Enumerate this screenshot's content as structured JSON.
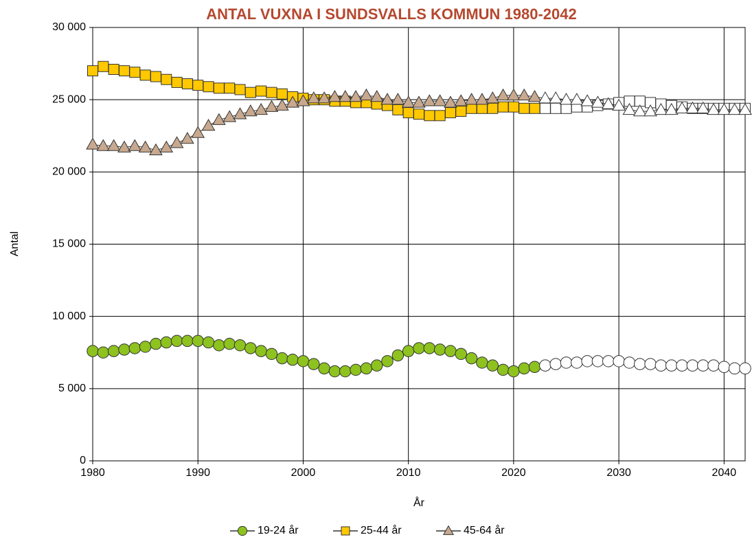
{
  "chart_data": {
    "type": "line",
    "title": "ANTAL VUXNA I SUNDSVALLS KOMMUN 1980-2042",
    "title_color": "#b5482e",
    "xlabel": "År",
    "ylabel": "Antal",
    "x": [
      1980,
      1981,
      1982,
      1983,
      1984,
      1985,
      1986,
      1987,
      1988,
      1989,
      1990,
      1991,
      1992,
      1993,
      1994,
      1995,
      1996,
      1997,
      1998,
      1999,
      2000,
      2001,
      2002,
      2003,
      2004,
      2005,
      2006,
      2007,
      2008,
      2009,
      2010,
      2011,
      2012,
      2013,
      2014,
      2015,
      2016,
      2017,
      2018,
      2019,
      2020,
      2021,
      2022,
      2023,
      2024,
      2025,
      2026,
      2027,
      2028,
      2029,
      2030,
      2031,
      2032,
      2033,
      2034,
      2035,
      2036,
      2037,
      2038,
      2039,
      2040,
      2041,
      2042
    ],
    "xlim": [
      1980,
      2042
    ],
    "xticks": [
      1980,
      1990,
      2000,
      2010,
      2020,
      2030,
      2040
    ],
    "ylim": [
      0,
      30000
    ],
    "yticks": [
      0,
      {
        "value": 5000,
        "label": "5 000"
      },
      {
        "value": 10000,
        "label": "10 000"
      },
      {
        "value": 15000,
        "label": "15 000"
      },
      {
        "value": 20000,
        "label": "20 000"
      },
      {
        "value": 25000,
        "label": "25 000"
      },
      {
        "value": 30000,
        "label": "30 000"
      }
    ],
    "grid": true,
    "legend": "bottom",
    "forecast_from": 2023,
    "forecast_fill": "#ffffff",
    "series": [
      {
        "name": "19-24 år",
        "color": "#8dc21f",
        "marker": "circle",
        "values": [
          7600,
          7500,
          7600,
          7700,
          7800,
          7900,
          8100,
          8200,
          8300,
          8300,
          8300,
          8200,
          8000,
          8100,
          8000,
          7800,
          7600,
          7400,
          7100,
          7000,
          6900,
          6700,
          6400,
          6200,
          6200,
          6300,
          6400,
          6600,
          6900,
          7300,
          7600,
          7800,
          7800,
          7700,
          7600,
          7400,
          7100,
          6800,
          6600,
          6300,
          6200,
          6400,
          6500,
          6600,
          6700,
          6800,
          6800,
          6900,
          6900,
          6900,
          6900,
          6800,
          6700,
          6700,
          6600,
          6600,
          6600,
          6600,
          6600,
          6600,
          6500,
          6400,
          6400
        ]
      },
      {
        "name": "25-44 år",
        "color": "#ffc800",
        "marker": "square",
        "values": [
          27000,
          27300,
          27100,
          27000,
          26900,
          26700,
          26600,
          26400,
          26200,
          26100,
          26000,
          25900,
          25800,
          25800,
          25700,
          25500,
          25600,
          25500,
          25400,
          25200,
          25100,
          25000,
          25000,
          24900,
          24900,
          24800,
          24800,
          24700,
          24600,
          24300,
          24100,
          24000,
          23900,
          23900,
          24100,
          24200,
          24400,
          24400,
          24400,
          24500,
          24500,
          24400,
          24400,
          24400,
          24400,
          24400,
          24500,
          24500,
          24600,
          24700,
          24800,
          24900,
          24900,
          24800,
          24700,
          24600,
          24500,
          24400,
          24400,
          24400,
          24400,
          24400,
          24400
        ]
      },
      {
        "name": "45-64 år",
        "color": "#c8a98f",
        "marker": "triangle",
        "values": [
          21900,
          21800,
          21800,
          21700,
          21800,
          21700,
          21500,
          21700,
          22000,
          22300,
          22700,
          23200,
          23600,
          23800,
          24000,
          24200,
          24300,
          24500,
          24600,
          24800,
          24900,
          25100,
          25100,
          25200,
          25200,
          25200,
          25300,
          25200,
          25000,
          25000,
          24800,
          24800,
          24900,
          24900,
          24800,
          24900,
          25000,
          25000,
          25100,
          25300,
          25300,
          25300,
          25200,
          25100,
          25100,
          25000,
          25000,
          24900,
          24800,
          24700,
          24600,
          24300,
          24200,
          24200,
          24300,
          24300,
          24400,
          24400,
          24400,
          24300,
          24300,
          24300,
          24300
        ]
      }
    ]
  }
}
